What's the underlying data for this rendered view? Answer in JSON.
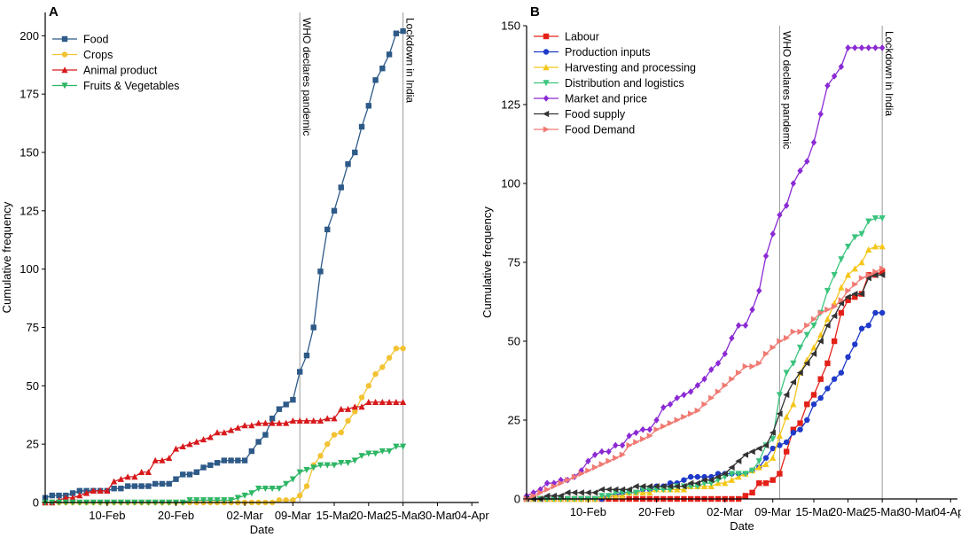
{
  "figure": {
    "panels": [
      "A",
      "B"
    ]
  },
  "chart_data": [
    {
      "type": "line",
      "panel": "A",
      "title": "",
      "xlabel": "Date",
      "ylabel": "Cumulative frequency",
      "x_start_day": 0,
      "x_end_day": 63,
      "ylim": [
        0,
        210
      ],
      "yticks": [
        0,
        25,
        50,
        75,
        100,
        125,
        150,
        175,
        200
      ],
      "xticks": [
        {
          "label": "10-Feb",
          "day": 9
        },
        {
          "label": "20-Feb",
          "day": 19
        },
        {
          "label": "02-Mar",
          "day": 29
        },
        {
          "label": "09-Mar",
          "day": 36
        },
        {
          "label": "15-Mar",
          "day": 42
        },
        {
          "label": "20-Mar",
          "day": 47
        },
        {
          "label": "25-Mar",
          "day": 52
        },
        {
          "label": "30-Mar",
          "day": 57
        },
        {
          "label": "04-Apr",
          "day": 62
        }
      ],
      "annotations": [
        {
          "day": 37,
          "text": "WHO declares pandemic"
        },
        {
          "day": 52,
          "text": "Lockdown in India"
        }
      ],
      "legend_position": "top-left",
      "series": [
        {
          "name": "Food",
          "color": "#2e5a88",
          "marker": "square",
          "values": [
            2,
            3,
            3,
            3,
            4,
            5,
            5,
            5,
            5,
            5,
            6,
            6,
            7,
            7,
            7,
            7,
            8,
            8,
            8,
            10,
            12,
            12,
            13,
            15,
            16,
            17,
            18,
            18,
            18,
            18,
            22,
            26,
            29,
            36,
            40,
            42,
            44,
            56,
            63,
            75,
            99,
            117,
            125,
            135,
            145,
            150,
            161,
            170,
            181,
            186,
            192,
            201,
            202
          ]
        },
        {
          "name": "Crops",
          "color": "#f2c232",
          "marker": "circle",
          "values": [
            0,
            0,
            0,
            0,
            0,
            0,
            0,
            0,
            0,
            0,
            0,
            0,
            0,
            0,
            0,
            0,
            0,
            0,
            0,
            0,
            0,
            0,
            0,
            0,
            0,
            0,
            0,
            0,
            0,
            0,
            0,
            0,
            0,
            0,
            1,
            1,
            1,
            3,
            7,
            16,
            20,
            25,
            29,
            30,
            35,
            39,
            45,
            50,
            55,
            58,
            62,
            66,
            66
          ]
        },
        {
          "name": "Animal product",
          "color": "#d7191c",
          "marker": "triangle-up",
          "values": [
            0,
            0,
            1,
            2,
            2,
            3,
            4,
            5,
            5,
            5,
            9,
            10,
            11,
            11,
            13,
            13,
            18,
            18,
            19,
            23,
            24,
            25,
            26,
            27,
            28,
            30,
            30,
            31,
            32,
            33,
            33,
            34,
            34,
            34,
            34,
            34,
            35,
            35,
            35,
            35,
            35,
            36,
            36,
            40,
            40,
            41,
            41,
            43,
            43,
            43,
            43,
            43,
            43
          ]
        },
        {
          "name": "Fruits & Vegetables",
          "color": "#2db665",
          "marker": "triangle-down",
          "values": [
            0,
            0,
            0,
            0,
            0,
            0,
            0,
            0,
            0,
            0,
            0,
            0,
            0,
            0,
            0,
            0,
            0,
            0,
            0,
            0,
            0,
            1,
            1,
            1,
            1,
            1,
            1,
            1,
            2,
            3,
            4,
            6,
            6,
            6,
            6,
            8,
            10,
            13,
            14,
            15,
            16,
            16,
            16,
            17,
            17,
            18,
            20,
            21,
            21,
            22,
            22,
            24,
            24
          ]
        }
      ]
    },
    {
      "type": "line",
      "panel": "B",
      "title": "",
      "xlabel": "Date",
      "ylabel": "Cumulative frequency",
      "x_start_day": 0,
      "x_end_day": 63,
      "ylim": [
        0,
        150
      ],
      "yticks": [
        0,
        25,
        50,
        75,
        100,
        125,
        150
      ],
      "xticks": [
        {
          "label": "10-Feb",
          "day": 9
        },
        {
          "label": "20-Feb",
          "day": 19
        },
        {
          "label": "02-Mar",
          "day": 29
        },
        {
          "label": "09-Mar",
          "day": 36
        },
        {
          "label": "15-Mar",
          "day": 42
        },
        {
          "label": "20-Mar",
          "day": 47
        },
        {
          "label": "25-Mar",
          "day": 52
        },
        {
          "label": "30-Mar",
          "day": 57
        },
        {
          "label": "04-Apr",
          "day": 62
        }
      ],
      "annotations": [
        {
          "day": 37,
          "text": "WHO declares pandemic"
        },
        {
          "day": 52,
          "text": "Lockdown in India"
        }
      ],
      "legend_position": "top-left",
      "series": [
        {
          "name": "Labour",
          "color": "#e32119",
          "marker": "square",
          "values": [
            0,
            0,
            0,
            0,
            0,
            0,
            0,
            0,
            0,
            0,
            0,
            0,
            0,
            0,
            0,
            0,
            0,
            0,
            0,
            0,
            0,
            0,
            0,
            0,
            0,
            0,
            0,
            0,
            0,
            0,
            0,
            0,
            1,
            2,
            5,
            5,
            6,
            8,
            15,
            22,
            24,
            30,
            33,
            38,
            43,
            50,
            59,
            63,
            64,
            65,
            71,
            71,
            72
          ]
        },
        {
          "name": "Production inputs",
          "color": "#1f3ac9",
          "marker": "circle",
          "values": [
            0,
            0,
            0,
            0,
            0,
            0,
            0,
            0,
            0,
            0,
            0,
            0,
            1,
            1,
            2,
            2,
            2,
            3,
            3,
            4,
            4,
            5,
            5,
            6,
            7,
            7,
            7,
            7,
            8,
            8,
            8,
            8,
            8,
            9,
            10,
            13,
            16,
            17,
            18,
            21,
            22,
            25,
            30,
            32,
            35,
            38,
            40,
            45,
            49,
            54,
            55,
            59,
            59
          ]
        },
        {
          "name": "Harvesting and processing",
          "color": "#f5c618",
          "marker": "triangle-up",
          "values": [
            0,
            0,
            0,
            0,
            0,
            0,
            0,
            0,
            0,
            0,
            0,
            1,
            1,
            1,
            1,
            2,
            2,
            2,
            2,
            3,
            3,
            3,
            3,
            3,
            4,
            4,
            4,
            4,
            5,
            5,
            6,
            7,
            8,
            9,
            10,
            11,
            13,
            20,
            26,
            30,
            40,
            44,
            48,
            52,
            57,
            62,
            67,
            71,
            73,
            75,
            79,
            80,
            80
          ]
        },
        {
          "name": "Distribution and logistics",
          "color": "#3bc47d",
          "marker": "triangle-down",
          "values": [
            0,
            0,
            0,
            0,
            0,
            0,
            0,
            0,
            0,
            0,
            0,
            1,
            1,
            2,
            2,
            2,
            2,
            3,
            3,
            3,
            3,
            3,
            4,
            4,
            4,
            4,
            5,
            5,
            6,
            7,
            8,
            8,
            8,
            9,
            12,
            17,
            19,
            33,
            40,
            43,
            48,
            52,
            55,
            59,
            66,
            71,
            76,
            80,
            83,
            84,
            88,
            89,
            89
          ]
        },
        {
          "name": "Market and price",
          "color": "#8b2ad4",
          "marker": "diamond",
          "values": [
            1,
            2,
            3,
            5,
            5,
            6,
            6,
            7,
            9,
            12,
            14,
            15,
            15,
            17,
            17,
            20,
            21,
            22,
            22,
            25,
            29,
            30,
            32,
            33,
            34,
            36,
            38,
            41,
            43,
            46,
            51,
            55,
            55,
            60,
            66,
            77,
            84,
            90,
            93,
            100,
            104,
            107,
            113,
            122,
            131,
            134,
            137,
            143,
            143,
            143,
            143,
            143,
            143
          ]
        },
        {
          "name": "Food supply",
          "color": "#333333",
          "marker": "triangle-left",
          "values": [
            0,
            0,
            0,
            1,
            1,
            1,
            2,
            2,
            2,
            2,
            2,
            3,
            3,
            3,
            3,
            3,
            4,
            4,
            4,
            4,
            4,
            4,
            4,
            4,
            5,
            5,
            6,
            6,
            7,
            8,
            10,
            12,
            14,
            15,
            16,
            17,
            21,
            27,
            33,
            37,
            40,
            43,
            46,
            50,
            55,
            58,
            62,
            64,
            65,
            65,
            70,
            71,
            71
          ]
        },
        {
          "name": "Food Demand",
          "color": "#f07a73",
          "marker": "triangle-right",
          "values": [
            0,
            1,
            2,
            3,
            4,
            5,
            6,
            7,
            8,
            9,
            10,
            11,
            12,
            13,
            14,
            17,
            18,
            19,
            20,
            22,
            23,
            24,
            25,
            26,
            27,
            28,
            30,
            32,
            34,
            36,
            38,
            40,
            42,
            42,
            43,
            46,
            48,
            50,
            51,
            53,
            53,
            55,
            57,
            59,
            60,
            61,
            63,
            66,
            68,
            70,
            71,
            72,
            73
          ]
        }
      ]
    }
  ]
}
